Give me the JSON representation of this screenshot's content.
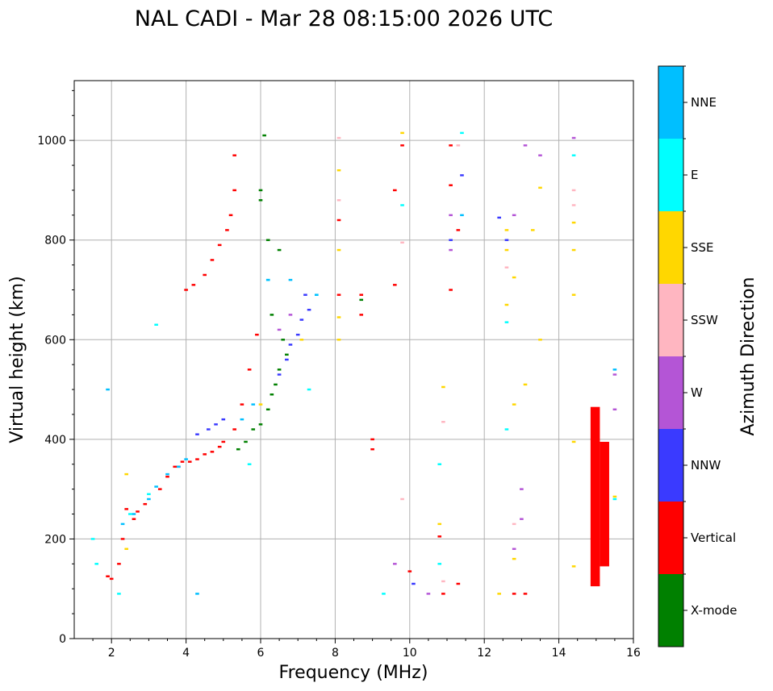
{
  "chart_data": {
    "type": "scatter",
    "title": "NAL CADI - Mar 28 08:15:00 2026 UTC",
    "xlabel": "Frequency (MHz)",
    "ylabel": "Virtual height (km)",
    "xlim": [
      1,
      16
    ],
    "ylim": [
      0,
      1120
    ],
    "xticks": [
      2,
      4,
      6,
      8,
      10,
      12,
      14,
      16
    ],
    "yticks": [
      0,
      200,
      400,
      600,
      800,
      1000
    ],
    "grid": true,
    "colorbar": {
      "label": "Azimuth Direction",
      "entries": [
        {
          "name": "X-mode",
          "color": "#008000"
        },
        {
          "name": "Vertical",
          "color": "#ff0000"
        },
        {
          "name": "NNW",
          "color": "#3a3aff"
        },
        {
          "name": "W",
          "color": "#b455d6"
        },
        {
          "name": "SSW",
          "color": "#ffb6c1"
        },
        {
          "name": "SSE",
          "color": "#ffd700"
        },
        {
          "name": "E",
          "color": "#00ffff"
        },
        {
          "name": "NNE",
          "color": "#00bfff"
        }
      ]
    },
    "series": [
      {
        "name": "Vertical",
        "color": "#ff0000",
        "points": [
          [
            1.9,
            125
          ],
          [
            2.0,
            120
          ],
          [
            2.2,
            150
          ],
          [
            2.3,
            200
          ],
          [
            2.4,
            260
          ],
          [
            2.6,
            240
          ],
          [
            2.7,
            255
          ],
          [
            2.9,
            270
          ],
          [
            3.3,
            300
          ],
          [
            3.5,
            325
          ],
          [
            3.7,
            345
          ],
          [
            3.8,
            345
          ],
          [
            3.9,
            355
          ],
          [
            4.1,
            355
          ],
          [
            4.3,
            360
          ],
          [
            4.5,
            370
          ],
          [
            4.7,
            375
          ],
          [
            4.9,
            385
          ],
          [
            5.0,
            395
          ],
          [
            5.3,
            420
          ],
          [
            5.5,
            470
          ],
          [
            5.7,
            540
          ],
          [
            5.9,
            610
          ],
          [
            4.0,
            700
          ],
          [
            4.2,
            710
          ],
          [
            4.5,
            730
          ],
          [
            4.7,
            760
          ],
          [
            4.9,
            790
          ],
          [
            5.1,
            820
          ],
          [
            5.2,
            850
          ],
          [
            5.3,
            900
          ],
          [
            5.3,
            970
          ],
          [
            8.7,
            690
          ],
          [
            8.7,
            650
          ],
          [
            9.0,
            400
          ],
          [
            9.0,
            380
          ],
          [
            9.6,
            900
          ],
          [
            9.6,
            710
          ],
          [
            9.8,
            990
          ],
          [
            10.0,
            135
          ],
          [
            10.8,
            205
          ],
          [
            10.9,
            90
          ],
          [
            11.3,
            110
          ],
          [
            11.1,
            990
          ],
          [
            11.1,
            910
          ],
          [
            11.1,
            700
          ],
          [
            11.3,
            820
          ],
          [
            12.8,
            90
          ],
          [
            13.1,
            90
          ],
          [
            8.1,
            840
          ],
          [
            8.1,
            690
          ]
        ]
      },
      {
        "name": "X-mode",
        "color": "#008000",
        "points": [
          [
            5.4,
            380
          ],
          [
            5.6,
            395
          ],
          [
            5.8,
            420
          ],
          [
            6.0,
            430
          ],
          [
            6.2,
            460
          ],
          [
            6.3,
            490
          ],
          [
            6.4,
            510
          ],
          [
            6.5,
            540
          ],
          [
            6.7,
            570
          ],
          [
            6.6,
            600
          ],
          [
            6.3,
            650
          ],
          [
            6.5,
            780
          ],
          [
            6.2,
            800
          ],
          [
            6.0,
            880
          ],
          [
            6.0,
            900
          ],
          [
            6.1,
            1010
          ],
          [
            8.7,
            680
          ]
        ]
      },
      {
        "name": "NNW",
        "color": "#3a3aff",
        "points": [
          [
            4.3,
            410
          ],
          [
            4.6,
            420
          ],
          [
            4.8,
            430
          ],
          [
            5.0,
            440
          ],
          [
            6.5,
            530
          ],
          [
            6.7,
            560
          ],
          [
            6.8,
            590
          ],
          [
            7.0,
            610
          ],
          [
            7.1,
            640
          ],
          [
            7.3,
            660
          ],
          [
            7.2,
            690
          ],
          [
            11.4,
            930
          ],
          [
            11.1,
            800
          ],
          [
            12.4,
            845
          ],
          [
            12.6,
            800
          ],
          [
            10.1,
            110
          ]
        ]
      },
      {
        "name": "W",
        "color": "#b455d6",
        "points": [
          [
            6.8,
            650
          ],
          [
            6.5,
            620
          ],
          [
            9.6,
            150
          ],
          [
            10.5,
            90
          ],
          [
            11.1,
            850
          ],
          [
            11.1,
            780
          ],
          [
            12.8,
            850
          ],
          [
            13.1,
            990
          ],
          [
            13.5,
            970
          ],
          [
            13.0,
            300
          ],
          [
            13.0,
            240
          ],
          [
            12.8,
            180
          ],
          [
            14.4,
            1005
          ],
          [
            15.5,
            530
          ],
          [
            15.5,
            460
          ]
        ]
      },
      {
        "name": "SSW",
        "color": "#ffb6c1",
        "points": [
          [
            8.1,
            1005
          ],
          [
            8.1,
            880
          ],
          [
            9.8,
            795
          ],
          [
            9.8,
            280
          ],
          [
            10.9,
            115
          ],
          [
            10.9,
            435
          ],
          [
            12.6,
            745
          ],
          [
            12.8,
            230
          ],
          [
            14.4,
            900
          ],
          [
            14.4,
            870
          ],
          [
            11.3,
            990
          ]
        ]
      },
      {
        "name": "SSE",
        "color": "#ffd700",
        "points": [
          [
            2.4,
            330
          ],
          [
            2.4,
            180
          ],
          [
            6.0,
            470
          ],
          [
            7.1,
            600
          ],
          [
            8.1,
            780
          ],
          [
            8.1,
            645
          ],
          [
            8.1,
            600
          ],
          [
            8.1,
            940
          ],
          [
            9.8,
            1015
          ],
          [
            10.8,
            230
          ],
          [
            10.9,
            505
          ],
          [
            12.4,
            90
          ],
          [
            12.6,
            820
          ],
          [
            12.6,
            780
          ],
          [
            12.6,
            670
          ],
          [
            12.8,
            725
          ],
          [
            12.8,
            470
          ],
          [
            12.8,
            160
          ],
          [
            13.1,
            510
          ],
          [
            13.3,
            820
          ],
          [
            13.5,
            905
          ],
          [
            13.5,
            600
          ],
          [
            14.4,
            835
          ],
          [
            14.4,
            780
          ],
          [
            14.4,
            690
          ],
          [
            14.4,
            395
          ],
          [
            14.4,
            145
          ],
          [
            15.5,
            285
          ]
        ]
      },
      {
        "name": "E",
        "color": "#00ffff",
        "points": [
          [
            1.5,
            200
          ],
          [
            1.6,
            150
          ],
          [
            2.2,
            90
          ],
          [
            2.5,
            250
          ],
          [
            3.0,
            290
          ],
          [
            3.2,
            630
          ],
          [
            5.7,
            350
          ],
          [
            6.2,
            720
          ],
          [
            7.3,
            500
          ],
          [
            7.5,
            690
          ],
          [
            9.3,
            90
          ],
          [
            9.8,
            870
          ],
          [
            10.8,
            150
          ],
          [
            10.8,
            350
          ],
          [
            11.4,
            1015
          ],
          [
            12.6,
            635
          ],
          [
            12.6,
            420
          ],
          [
            14.4,
            970
          ],
          [
            15.5,
            280
          ]
        ]
      },
      {
        "name": "NNE",
        "color": "#00bfff",
        "points": [
          [
            1.9,
            500
          ],
          [
            2.3,
            230
          ],
          [
            2.6,
            250
          ],
          [
            3.0,
            280
          ],
          [
            3.2,
            305
          ],
          [
            3.5,
            330
          ],
          [
            3.8,
            345
          ],
          [
            4.0,
            360
          ],
          [
            4.3,
            90
          ],
          [
            5.5,
            440
          ],
          [
            5.8,
            470
          ],
          [
            6.2,
            720
          ],
          [
            6.8,
            720
          ],
          [
            7.5,
            690
          ],
          [
            11.4,
            850
          ],
          [
            15.5,
            540
          ]
        ]
      }
    ],
    "blocks": [
      {
        "name": "Vertical",
        "color": "#ff0000",
        "freq": [
          14.85,
          15.1
        ],
        "height": [
          105,
          465
        ]
      },
      {
        "name": "Vertical",
        "color": "#ff0000",
        "freq": [
          15.1,
          15.35
        ],
        "height": [
          145,
          395
        ]
      }
    ]
  }
}
